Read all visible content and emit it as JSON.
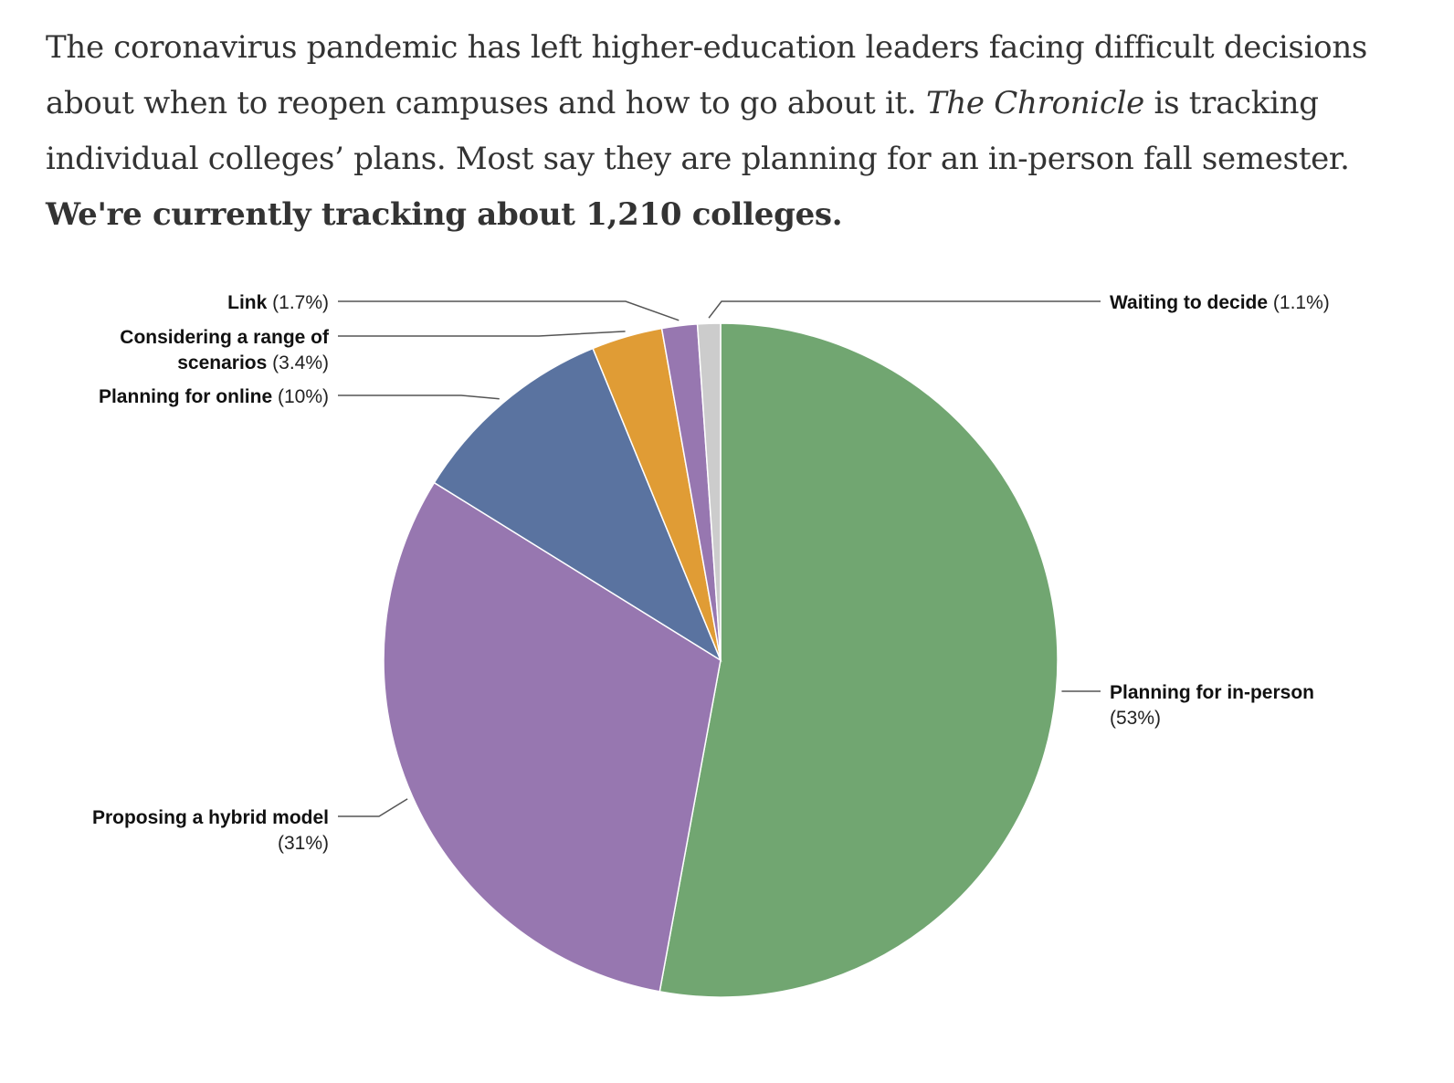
{
  "intro": {
    "part1": "The coronavirus pandemic has left higher-education leaders facing difficult decisions about when to reopen campuses and how to go about it. ",
    "publication": "The Chronicle",
    "part2": " is tracking individual colleges’ plans. Most say they are planning for an in-person fall semester. ",
    "bold": "We're currently tracking about 1,210 colleges."
  },
  "chart_data": {
    "type": "pie",
    "start_angle_deg": 0,
    "direction": "clockwise",
    "slices": [
      {
        "label": "Planning for in-person",
        "pct_label": "(53%)",
        "value": 53,
        "color": "#71a671"
      },
      {
        "label": "Proposing a hybrid model",
        "pct_label": "(31%)",
        "value": 31,
        "color": "#9777b0"
      },
      {
        "label": "Planning for online",
        "pct_label": "(10%)",
        "value": 10,
        "color": "#5a73a0"
      },
      {
        "label": "Considering a range of scenarios",
        "pct_label": "(3.4%)",
        "value": 3.4,
        "color": "#e09c35"
      },
      {
        "label": "Link",
        "pct_label": "(1.7%)",
        "value": 1.7,
        "color": "#9777b0"
      },
      {
        "label": "Waiting to decide",
        "pct_label": "(1.1%)",
        "value": 1.1,
        "color": "#cccccc"
      }
    ]
  }
}
